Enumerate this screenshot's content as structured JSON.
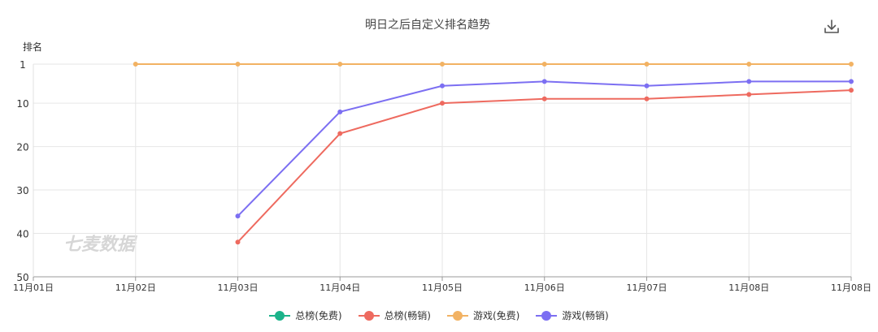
{
  "chart_data": {
    "type": "line",
    "title": "明日之后自定义排名趋势",
    "ylabel": "排名",
    "ylim": [
      50,
      1
    ],
    "y_inverted": true,
    "yticks": [
      1,
      10,
      20,
      30,
      40,
      50
    ],
    "x": [
      "11月01日",
      "11月02日",
      "11月03日",
      "11月04日",
      "11月05日",
      "11月06日",
      "11月07日",
      "11月08日",
      "11月08日"
    ],
    "grid": true,
    "legend_position": "bottom",
    "watermark": "七麦数据",
    "series": [
      {
        "name": "总榜(免费)",
        "color": "#1bb38a",
        "values": [
          null,
          null,
          null,
          null,
          null,
          null,
          null,
          null,
          null
        ]
      },
      {
        "name": "总榜(畅销)",
        "color": "#ee6a5f",
        "values": [
          null,
          null,
          42,
          17,
          10,
          9,
          9,
          8,
          7
        ]
      },
      {
        "name": "游戏(免费)",
        "color": "#f2b263",
        "values": [
          null,
          1,
          1,
          1,
          1,
          1,
          1,
          1,
          1
        ]
      },
      {
        "name": "游戏(畅销)",
        "color": "#7c6ff2",
        "values": [
          null,
          null,
          36,
          12,
          6,
          5,
          6,
          5,
          5
        ]
      }
    ]
  },
  "toolbar": {
    "download_icon": "download-icon"
  }
}
